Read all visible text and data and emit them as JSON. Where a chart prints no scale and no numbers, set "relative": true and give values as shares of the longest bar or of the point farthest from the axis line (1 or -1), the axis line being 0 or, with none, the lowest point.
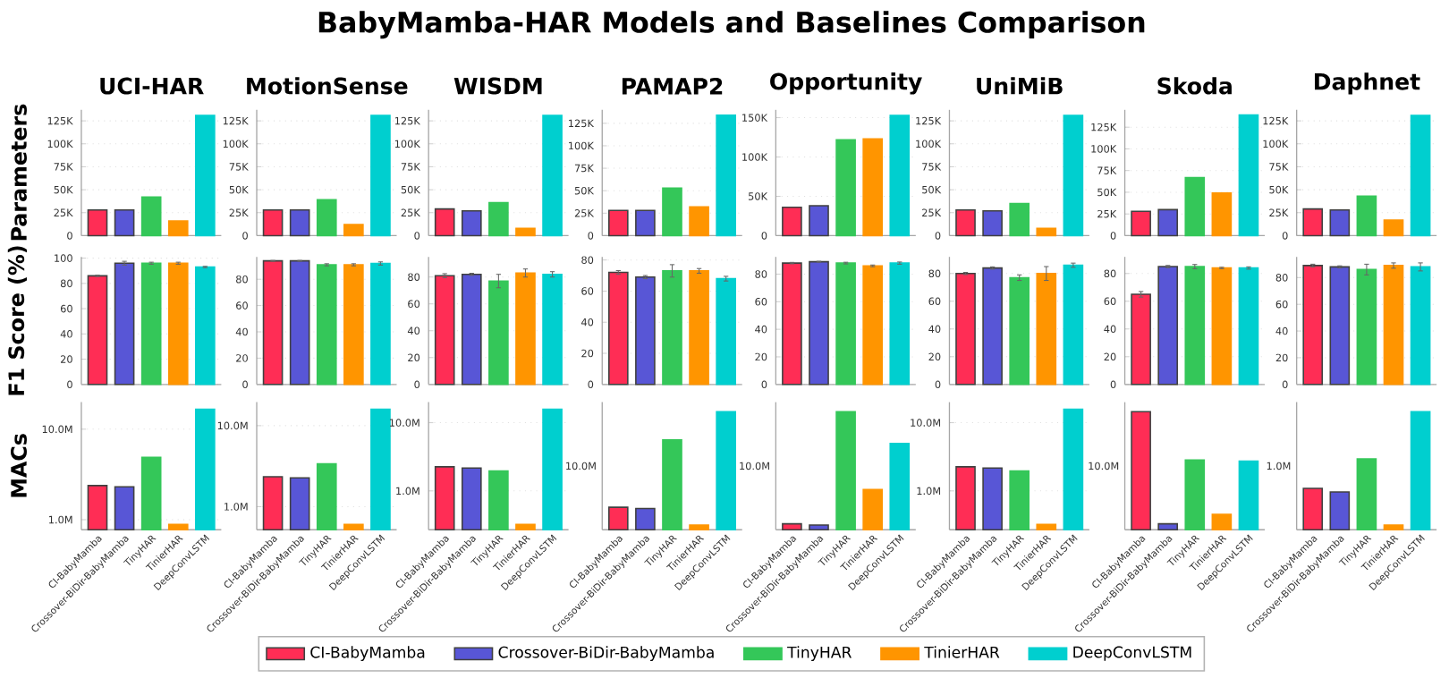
{
  "chart_data": [
    {
      "type": "other",
      "title": "BabyMamba-HAR Models and Baselines Comparison",
      "categories": [
        "CI-BabyMamba",
        "Crossover-BiDir-BabyMamba",
        "TinyHAR",
        "TinierHAR",
        "DeepConvLSTM"
      ],
      "colors": [
        "#ff2d55",
        "#5856d6",
        "#34c759",
        "#ff9500",
        "#00cfcf"
      ]
    },
    {
      "type": "bar",
      "title": "UCI-HAR",
      "ylabel": "Parameters",
      "categories": [
        null,
        null,
        null,
        null,
        null
      ],
      "values": [
        28,
        28,
        42,
        16,
        131
      ],
      "colors": [
        "#ff2d55",
        "#5856d6",
        "#34c759",
        "#ff9500",
        "#00cfcf"
      ],
      "ylim": [
        0,
        137
      ],
      "yticks": [
        0,
        {
          "value": 25,
          "label": "25K"
        },
        {
          "value": 50,
          "label": "50K"
        },
        {
          "value": 75,
          "label": "75K"
        },
        {
          "value": 100,
          "label": "100K"
        },
        {
          "value": 125,
          "label": "125K"
        }
      ],
      "grid": "y",
      "tick_labels": "y"
    },
    {
      "type": "bar",
      "title": "MotionSense",
      "categories": [
        null,
        null,
        null,
        null,
        null
      ],
      "values": [
        28,
        28,
        39,
        12,
        131
      ],
      "colors": [
        "#ff2d55",
        "#5856d6",
        "#34c759",
        "#ff9500",
        "#00cfcf"
      ],
      "ylim": [
        0,
        137
      ],
      "yticks": [
        0,
        {
          "value": 25,
          "label": "25K"
        },
        {
          "value": 50,
          "label": "50K"
        },
        {
          "value": 75,
          "label": "75K"
        },
        {
          "value": 100,
          "label": "100K"
        },
        {
          "value": 125,
          "label": "125K"
        }
      ],
      "grid": "y",
      "tick_labels": "y"
    },
    {
      "type": "bar",
      "title": "WISDM",
      "categories": [
        null,
        null,
        null,
        null,
        null
      ],
      "values": [
        29,
        27,
        36,
        8,
        131
      ],
      "colors": [
        "#ff2d55",
        "#5856d6",
        "#34c759",
        "#ff9500",
        "#00cfcf"
      ],
      "ylim": [
        0,
        137
      ],
      "yticks": [
        0,
        {
          "value": 25,
          "label": "25K"
        },
        {
          "value": 50,
          "label": "50K"
        },
        {
          "value": 75,
          "label": "75K"
        },
        {
          "value": 100,
          "label": "100K"
        },
        {
          "value": 125,
          "label": "125K"
        }
      ],
      "grid": "y",
      "tick_labels": "y"
    },
    {
      "type": "bar",
      "title": "PAMAP2",
      "categories": [
        null,
        null,
        null,
        null,
        null
      ],
      "values": [
        28,
        28,
        53,
        32,
        134
      ],
      "colors": [
        "#ff2d55",
        "#5856d6",
        "#34c759",
        "#ff9500",
        "#00cfcf"
      ],
      "ylim": [
        0,
        140
      ],
      "yticks": [
        0,
        {
          "value": 25,
          "label": "25K"
        },
        {
          "value": 50,
          "label": "50K"
        },
        {
          "value": 75,
          "label": "75K"
        },
        {
          "value": 100,
          "label": "100K"
        },
        {
          "value": 125,
          "label": "125K"
        }
      ],
      "grid": "y",
      "tick_labels": "y"
    },
    {
      "type": "bar",
      "title": "Opportunity",
      "categories": [
        null,
        null,
        null,
        null,
        null
      ],
      "values": [
        36,
        38,
        122,
        123,
        153
      ],
      "colors": [
        "#ff2d55",
        "#5856d6",
        "#34c759",
        "#ff9500",
        "#00cfcf"
      ],
      "ylim": [
        0,
        160
      ],
      "yticks": [
        0,
        {
          "value": 50,
          "label": "50K"
        },
        {
          "value": 100,
          "label": "100K"
        },
        {
          "value": 150,
          "label": "150K"
        }
      ],
      "grid": "y",
      "tick_labels": "y"
    },
    {
      "type": "bar",
      "title": "UniMiB",
      "categories": [
        null,
        null,
        null,
        null,
        null
      ],
      "values": [
        28,
        27,
        35,
        8,
        131
      ],
      "colors": [
        "#ff2d55",
        "#5856d6",
        "#34c759",
        "#ff9500",
        "#00cfcf"
      ],
      "ylim": [
        0,
        137
      ],
      "yticks": [
        0,
        {
          "value": 25,
          "label": "25K"
        },
        {
          "value": 50,
          "label": "50K"
        },
        {
          "value": 75,
          "label": "75K"
        },
        {
          "value": 100,
          "label": "100K"
        },
        {
          "value": 125,
          "label": "125K"
        }
      ],
      "grid": "y",
      "tick_labels": "y"
    },
    {
      "type": "bar",
      "title": "Skoda",
      "categories": [
        null,
        null,
        null,
        null,
        null
      ],
      "values": [
        28,
        30,
        67,
        49,
        139
      ],
      "colors": [
        "#ff2d55",
        "#5856d6",
        "#34c759",
        "#ff9500",
        "#00cfcf"
      ],
      "ylim": [
        0,
        145
      ],
      "yticks": [
        0,
        {
          "value": 25,
          "label": "25K"
        },
        {
          "value": 50,
          "label": "50K"
        },
        {
          "value": 75,
          "label": "75K"
        },
        {
          "value": 100,
          "label": "100K"
        },
        {
          "value": 125,
          "label": "125K"
        }
      ],
      "grid": "y",
      "tick_labels": "y"
    },
    {
      "type": "bar",
      "title": "Daphnet",
      "categories": [
        null,
        null,
        null,
        null,
        null
      ],
      "values": [
        29,
        28,
        43,
        17,
        131
      ],
      "colors": [
        "#ff2d55",
        "#5856d6",
        "#34c759",
        "#ff9500",
        "#00cfcf"
      ],
      "ylim": [
        0,
        137
      ],
      "yticks": [
        0,
        {
          "value": 25,
          "label": "25K"
        },
        {
          "value": 50,
          "label": "50K"
        },
        {
          "value": 75,
          "label": "75K"
        },
        {
          "value": 100,
          "label": "100K"
        },
        {
          "value": 125,
          "label": "125K"
        }
      ],
      "grid": "y",
      "tick_labels": "y"
    },
    {
      "type": "bar",
      "ylabel": "F1 Score (%)",
      "categories": [
        null,
        null,
        null,
        null,
        null
      ],
      "values": [
        86,
        96,
        96,
        96,
        93
      ],
      "errors": [
        0.5,
        1.5,
        0.8,
        0.8,
        0.5
      ],
      "colors": [
        "#ff2d55",
        "#5856d6",
        "#34c759",
        "#ff9500",
        "#00cfcf"
      ],
      "ylim": [
        0,
        101
      ],
      "yticks": [
        0,
        20,
        40,
        60,
        80,
        100
      ],
      "grid": "y",
      "tick_labels": "y"
    },
    {
      "type": "bar",
      "categories": [
        null,
        null,
        null,
        null,
        null
      ],
      "values": [
        94,
        94,
        91,
        91,
        92
      ],
      "errors": [
        0.3,
        0.3,
        0.8,
        0.8,
        1.2
      ],
      "colors": [
        "#ff2d55",
        "#5856d6",
        "#34c759",
        "#ff9500",
        "#00cfcf"
      ],
      "ylim": [
        0,
        97
      ],
      "yticks": [
        0,
        20,
        40,
        60,
        80
      ],
      "grid": "y",
      "tick_labels": "y"
    },
    {
      "type": "bar",
      "categories": [
        null,
        null,
        null,
        null,
        null
      ],
      "values": [
        81,
        82,
        77,
        83,
        82
      ],
      "errors": [
        1.5,
        0.8,
        5,
        3,
        2
      ],
      "colors": [
        "#ff2d55",
        "#5856d6",
        "#34c759",
        "#ff9500",
        "#00cfcf"
      ],
      "ylim": [
        0,
        95
      ],
      "yticks": [
        0,
        20,
        40,
        60,
        80
      ],
      "grid": "y",
      "tick_labels": "y"
    },
    {
      "type": "bar",
      "categories": [
        null,
        null,
        null,
        null,
        null
      ],
      "values": [
        72,
        69,
        73,
        73,
        68
      ],
      "errors": [
        1.2,
        1,
        4,
        1.5,
        1.5
      ],
      "colors": [
        "#ff2d55",
        "#5856d6",
        "#34c759",
        "#ff9500",
        "#00cfcf"
      ],
      "ylim": [
        0,
        82
      ],
      "yticks": [
        0,
        20,
        40,
        60,
        80
      ],
      "grid": "y",
      "tick_labels": "y"
    },
    {
      "type": "bar",
      "categories": [
        null,
        null,
        null,
        null,
        null
      ],
      "values": [
        88,
        89,
        88,
        86,
        88
      ],
      "errors": [
        0.5,
        0.3,
        0.6,
        0.6,
        0.8
      ],
      "colors": [
        "#ff2d55",
        "#5856d6",
        "#34c759",
        "#ff9500",
        "#00cfcf"
      ],
      "ylim": [
        0,
        92.5
      ],
      "yticks": [
        0,
        20,
        40,
        60,
        80
      ],
      "grid": "y",
      "tick_labels": "y"
    },
    {
      "type": "bar",
      "categories": [
        null,
        null,
        null,
        null,
        null
      ],
      "values": [
        80,
        84,
        77,
        80,
        86
      ],
      "errors": [
        0.8,
        0.8,
        2,
        5,
        1.5
      ],
      "colors": [
        "#ff2d55",
        "#5856d6",
        "#34c759",
        "#ff9500",
        "#00cfcf"
      ],
      "ylim": [
        0,
        92
      ],
      "yticks": [
        0,
        20,
        40,
        60,
        80
      ],
      "grid": "y",
      "tick_labels": "y"
    },
    {
      "type": "bar",
      "categories": [
        null,
        null,
        null,
        null,
        null
      ],
      "values": [
        65,
        85,
        85,
        84,
        84
      ],
      "errors": [
        2,
        0.8,
        1.5,
        0.5,
        0.8
      ],
      "colors": [
        "#ff2d55",
        "#5856d6",
        "#34c759",
        "#ff9500",
        "#00cfcf"
      ],
      "ylim": [
        0,
        92
      ],
      "yticks": [
        0,
        20,
        40,
        60,
        80
      ],
      "grid": "y",
      "tick_labels": "y"
    },
    {
      "type": "bar",
      "categories": [
        null,
        null,
        null,
        null,
        null
      ],
      "values": [
        89,
        88,
        86,
        89,
        88
      ],
      "errors": [
        1,
        0.8,
        4,
        2,
        3
      ],
      "colors": [
        "#ff2d55",
        "#5856d6",
        "#34c759",
        "#ff9500",
        "#00cfcf"
      ],
      "ylim": [
        0,
        95.5
      ],
      "yticks": [
        0,
        20,
        40,
        60,
        80
      ],
      "grid": "y",
      "tick_labels": "y"
    },
    {
      "type": "bar",
      "ylabel": "MACs",
      "categories": [
        "CI-BabyMamba",
        "Crossover-BiDir-BabyMamba",
        "TinyHAR",
        "TinierHAR",
        "DeepConvLSTM"
      ],
      "values": [
        2.38,
        2.31,
        4.88,
        0.887,
        16.6
      ],
      "colors": [
        "#ff2d55",
        "#5856d6",
        "#34c759",
        "#ff9500",
        "#00cfcf"
      ],
      "ylim": [
        0.775,
        19.9
      ],
      "yticks": [
        {
          "value": 1,
          "label": "1.0M"
        },
        {
          "value": 10,
          "label": "10.0M"
        }
      ],
      "log": "y",
      "grid": "y"
    },
    {
      "type": "bar",
      "categories": [
        "CI-BabyMamba",
        "Crossover-BiDir-BabyMamba",
        "TinyHAR",
        "TinierHAR",
        "DeepConvLSTM"
      ],
      "values": [
        2.34,
        2.27,
        3.38,
        0.606,
        15.96
      ],
      "colors": [
        "#ff2d55",
        "#5856d6",
        "#34c759",
        "#ff9500",
        "#00cfcf"
      ],
      "ylim": [
        0.52,
        19.5
      ],
      "yticks": [
        {
          "value": 1,
          "label": "1.0M"
        },
        {
          "value": 10,
          "label": "10.0M"
        }
      ],
      "log": "y",
      "grid": "y"
    },
    {
      "type": "bar",
      "categories": [
        "CI-BabyMamba",
        "Crossover-BiDir-BabyMamba",
        "TinyHAR",
        "TinierHAR",
        "DeepConvLSTM"
      ],
      "values": [
        2.26,
        2.17,
        1.96,
        0.323,
        15.8
      ],
      "colors": [
        "#ff2d55",
        "#5856d6",
        "#34c759",
        "#ff9500",
        "#00cfcf"
      ],
      "ylim": [
        0.27,
        20
      ],
      "yticks": [
        {
          "value": 1,
          "label": "1.0M"
        },
        {
          "value": 10,
          "label": "10.0M"
        }
      ],
      "log": "y",
      "grid": "y"
    },
    {
      "type": "bar",
      "categories": [
        "CI-BabyMamba",
        "Crossover-BiDir-BabyMamba",
        "TinyHAR",
        "TinierHAR",
        "DeepConvLSTM"
      ],
      "values": [
        0.19,
        0.18,
        0.76,
        0.04,
        1
      ],
      "colors": [
        "#ff2d55",
        "#5856d6",
        "#34c759",
        "#ff9500",
        "#00cfcf"
      ],
      "relative": true,
      "annotations": [
        "10.0M"
      ]
    },
    {
      "type": "bar",
      "categories": [
        "CI-BabyMamba",
        "Crossover-BiDir-BabyMamba",
        "TinyHAR",
        "TinierHAR",
        "DeepConvLSTM"
      ],
      "values": [
        0.05,
        0.04,
        1,
        0.34,
        0.73
      ],
      "colors": [
        "#ff2d55",
        "#5856d6",
        "#34c759",
        "#ff9500",
        "#00cfcf"
      ],
      "relative": true,
      "annotations": [
        "10.0M"
      ]
    },
    {
      "type": "bar",
      "categories": [
        "CI-BabyMamba",
        "Crossover-BiDir-BabyMamba",
        "TinyHAR",
        "TinierHAR",
        "DeepConvLSTM"
      ],
      "values": [
        2.26,
        2.17,
        1.96,
        0.323,
        15.8
      ],
      "colors": [
        "#ff2d55",
        "#5856d6",
        "#34c759",
        "#ff9500",
        "#00cfcf"
      ],
      "ylim": [
        0.27,
        20
      ],
      "yticks": [
        {
          "value": 1,
          "label": "1.0M"
        },
        {
          "value": 10,
          "label": "10.0M"
        }
      ],
      "log": "y",
      "grid": "y"
    },
    {
      "type": "bar",
      "categories": [
        "CI-BabyMamba",
        "Crossover-BiDir-BabyMamba",
        "TinyHAR",
        "TinierHAR",
        "DeepConvLSTM"
      ],
      "values": [
        1,
        0.05,
        0.59,
        0.13,
        0.58
      ],
      "colors": [
        "#ff2d55",
        "#5856d6",
        "#34c759",
        "#ff9500",
        "#00cfcf"
      ],
      "relative": true,
      "annotations": [
        "10.0M"
      ]
    },
    {
      "type": "bar",
      "categories": [
        "CI-BabyMamba",
        "Crossover-BiDir-BabyMamba",
        "TinyHAR",
        "TinierHAR",
        "DeepConvLSTM"
      ],
      "values": [
        0.35,
        0.32,
        0.6,
        0.04,
        1
      ],
      "colors": [
        "#ff2d55",
        "#5856d6",
        "#34c759",
        "#ff9500",
        "#00cfcf"
      ],
      "relative": true,
      "annotations": [
        "1.0M"
      ]
    }
  ]
}
